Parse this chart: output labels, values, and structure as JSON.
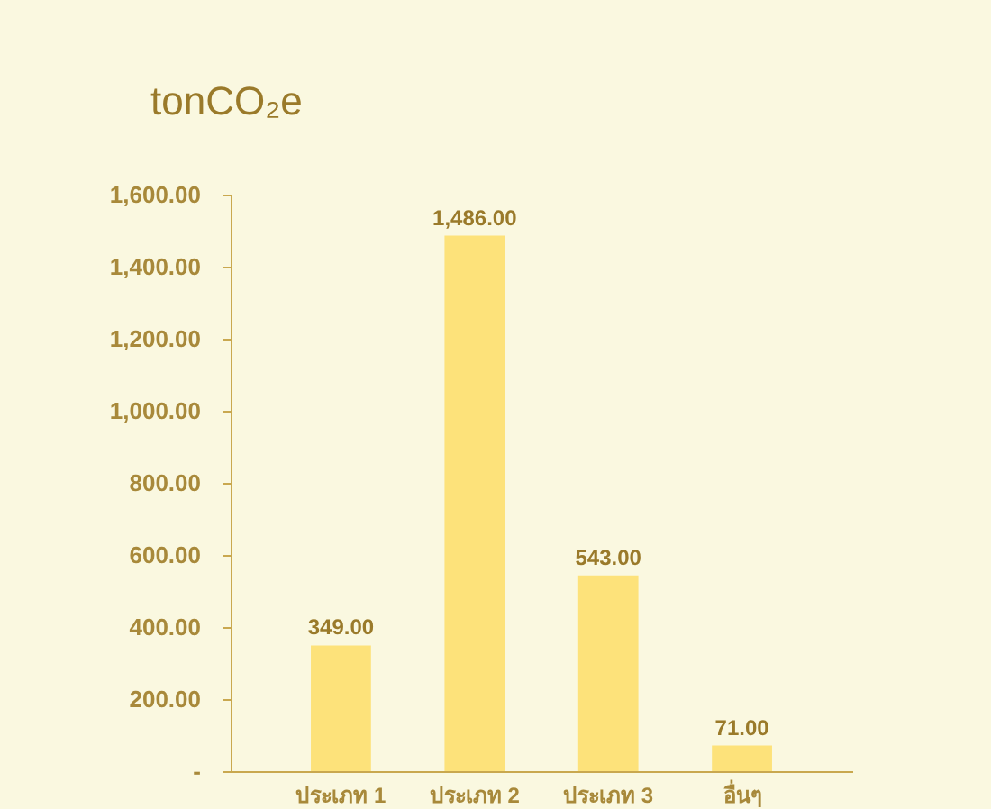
{
  "chart_data": {
    "type": "bar",
    "ylabel": "tonCO₂e",
    "categories": [
      "ประเภท 1",
      "ประเภท 2",
      "ประเภท 3",
      "อื่นๆ"
    ],
    "values": [
      349,
      1486,
      543,
      71
    ],
    "color": "#fde27a",
    "value_labels": [
      "349.00",
      "1,486.00",
      "543.00",
      "71.00"
    ],
    "ylim": [
      0,
      1600
    ],
    "yticks": [
      {
        "value": 0,
        "label": "-"
      },
      {
        "value": 200,
        "label": "200.00"
      },
      {
        "value": 400,
        "label": "400.00"
      },
      {
        "value": 600,
        "label": "600.00"
      },
      {
        "value": 800,
        "label": "800.00"
      },
      {
        "value": 1000,
        "label": "1,000.00"
      },
      {
        "value": 1200,
        "label": "1,200.00"
      },
      {
        "value": 1400,
        "label": "1,400.00"
      },
      {
        "value": 1600,
        "label": "1,600.00"
      }
    ],
    "grid": false
  }
}
